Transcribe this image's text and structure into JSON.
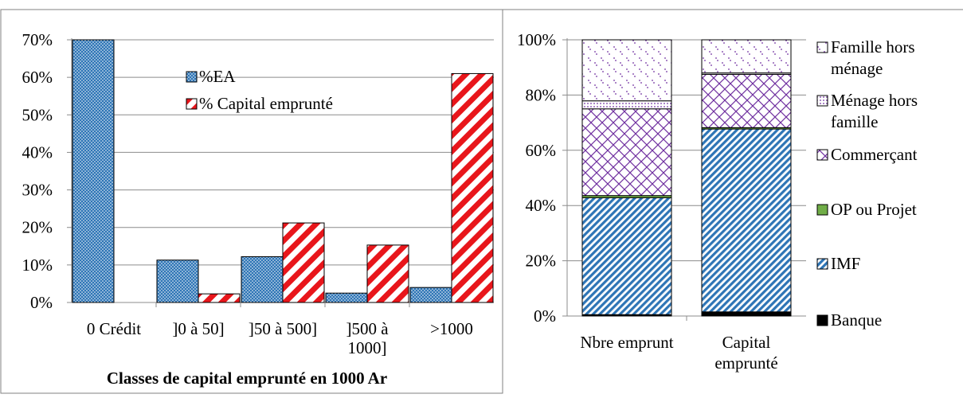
{
  "chart_data": [
    {
      "type": "bar",
      "xlabel": "Classes de capital emprunté en 1000 Ar",
      "ylabel": "",
      "ylim": [
        0,
        70
      ],
      "yticks": [
        "0%",
        "10%",
        "20%",
        "30%",
        "40%",
        "50%",
        "60%",
        "70%"
      ],
      "categories": [
        "0 Crédit",
        "]0 à 50]",
        "]50 à 500]",
        "]500 à 1000]",
        ">1000"
      ],
      "category_lines": [
        [
          "0 Crédit"
        ],
        [
          "]0 à 50]"
        ],
        [
          "]50 à 500]"
        ],
        [
          "]500 à",
          "1000]"
        ],
        [
          ">1000"
        ]
      ],
      "grid": true,
      "legend_position": "top-center",
      "series": [
        {
          "name": "%EA",
          "values": [
            70,
            11.3,
            12.2,
            2.5,
            4.0
          ],
          "color": "#2e75b6",
          "pattern": "dots"
        },
        {
          "name": "% Capital emprunté",
          "values": [
            0,
            2.3,
            21.2,
            15.3,
            61.0
          ],
          "color": "#e8161b",
          "pattern": "diagonal-stripes"
        }
      ]
    },
    {
      "type": "bar",
      "stacked": true,
      "ylim": [
        0,
        100
      ],
      "yticks": [
        "0%",
        "20%",
        "40%",
        "60%",
        "80%",
        "100%"
      ],
      "categories": [
        "Nbre emprunt",
        "Capital emprunté"
      ],
      "category_lines": [
        [
          "Nbre emprunt"
        ],
        [
          "Capital",
          "emprunté"
        ]
      ],
      "grid": true,
      "legend_position": "right",
      "series": [
        {
          "name": "Banque",
          "values": [
            0.5,
            1.5
          ],
          "color": "#000000",
          "pattern": "solid"
        },
        {
          "name": "IMF",
          "values": [
            42.3,
            66.2
          ],
          "color": "#2e75b6",
          "pattern": "diagonal-stripes"
        },
        {
          "name": "OP ou Projet",
          "values": [
            0.8,
            0.5
          ],
          "color": "#70ad47",
          "pattern": "solid"
        },
        {
          "name": "Commerçant",
          "values": [
            31.4,
            19.3
          ],
          "color": "#7030a0",
          "pattern": "crosshatch"
        },
        {
          "name": "Ménage hors famille",
          "values": [
            2.9,
            0.5
          ],
          "color": "#7030a0",
          "pattern": "small-dots"
        },
        {
          "name": "Famille hors ménage",
          "values": [
            22.1,
            12.0
          ],
          "color": "#7030a0",
          "pattern": "sparse-dots"
        }
      ],
      "legend_lines": [
        [
          "Famille hors",
          "ménage"
        ],
        [
          "Ménage hors",
          "famille"
        ],
        [
          "Commerçant"
        ],
        [
          "OP ou Projet"
        ],
        [
          "IMF"
        ],
        [
          "Banque"
        ]
      ]
    }
  ]
}
